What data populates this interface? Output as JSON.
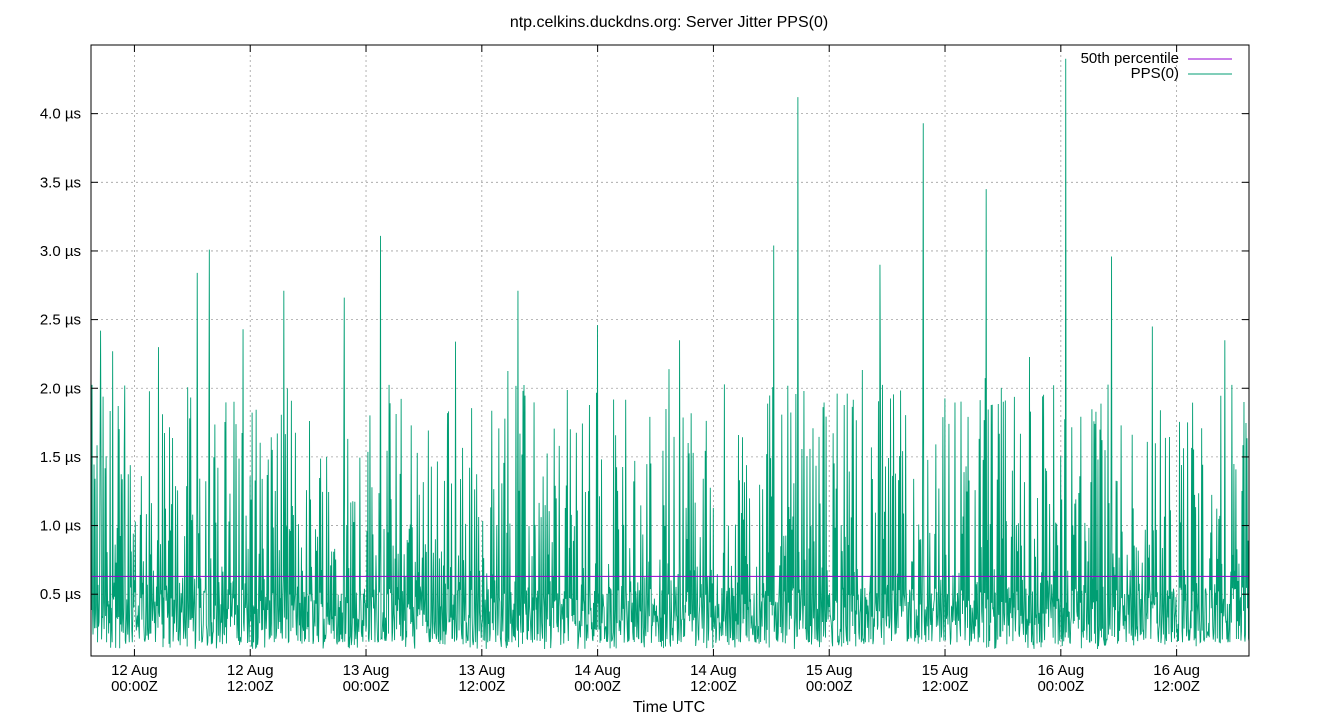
{
  "chart_data": {
    "type": "line",
    "title": "ntp.celkins.duckdns.org: Server Jitter PPS(0)",
    "xlabel": "Time UTC",
    "ylabel": "",
    "y_unit": "µs",
    "ylim": [
      0.05,
      4.5
    ],
    "xlim": [
      "2025-08-11T19:30Z",
      "2025-08-16T19:30Z"
    ],
    "grid": true,
    "legend_position": "top-right",
    "y_ticks": [
      {
        "value": 0.5,
        "label": "0.5 µs"
      },
      {
        "value": 1.0,
        "label": "1.0 µs"
      },
      {
        "value": 1.5,
        "label": "1.5 µs"
      },
      {
        "value": 2.0,
        "label": "2.0 µs"
      },
      {
        "value": 2.5,
        "label": "2.5 µs"
      },
      {
        "value": 3.0,
        "label": "3.0 µs"
      },
      {
        "value": 3.5,
        "label": "3.5 µs"
      },
      {
        "value": 4.0,
        "label": "4.0 µs"
      }
    ],
    "x_ticks": [
      {
        "value": "2025-08-12T00:00Z",
        "label": [
          "12 Aug",
          "00:00Z"
        ]
      },
      {
        "value": "2025-08-12T12:00Z",
        "label": [
          "12 Aug",
          "12:00Z"
        ]
      },
      {
        "value": "2025-08-13T00:00Z",
        "label": [
          "13 Aug",
          "00:00Z"
        ]
      },
      {
        "value": "2025-08-13T12:00Z",
        "label": [
          "13 Aug",
          "12:00Z"
        ]
      },
      {
        "value": "2025-08-14T00:00Z",
        "label": [
          "14 Aug",
          "00:00Z"
        ]
      },
      {
        "value": "2025-08-14T12:00Z",
        "label": [
          "14 Aug",
          "12:00Z"
        ]
      },
      {
        "value": "2025-08-15T00:00Z",
        "label": [
          "15 Aug",
          "00:00Z"
        ]
      },
      {
        "value": "2025-08-15T12:00Z",
        "label": [
          "15 Aug",
          "12:00Z"
        ]
      },
      {
        "value": "2025-08-16T00:00Z",
        "label": [
          "16 Aug",
          "00:00Z"
        ]
      },
      {
        "value": "2025-08-16T12:00Z",
        "label": [
          "16 Aug",
          "12:00Z"
        ]
      }
    ],
    "series": [
      {
        "name": "50th percentile",
        "color": "#9400d3",
        "constant_value": 0.63
      },
      {
        "name": "PPS(0)",
        "color": "#009e73",
        "peaks": [
          {
            "x": "2025-08-11T20:30Z",
            "y": 2.42
          },
          {
            "x": "2025-08-11T21:45Z",
            "y": 2.27
          },
          {
            "x": "2025-08-11T23:00Z",
            "y": 2.02
          },
          {
            "x": "2025-08-12T02:30Z",
            "y": 2.3
          },
          {
            "x": "2025-08-12T06:30Z",
            "y": 2.84
          },
          {
            "x": "2025-08-12T07:45Z",
            "y": 3.01
          },
          {
            "x": "2025-08-12T11:15Z",
            "y": 2.43
          },
          {
            "x": "2025-08-12T15:30Z",
            "y": 2.71
          },
          {
            "x": "2025-08-12T21:45Z",
            "y": 2.66
          },
          {
            "x": "2025-08-13T01:30Z",
            "y": 3.11
          },
          {
            "x": "2025-08-13T09:15Z",
            "y": 2.34
          },
          {
            "x": "2025-08-13T15:45Z",
            "y": 2.71
          },
          {
            "x": "2025-08-14T00:00Z",
            "y": 2.46
          },
          {
            "x": "2025-08-14T08:30Z",
            "y": 2.35
          },
          {
            "x": "2025-08-14T18:15Z",
            "y": 3.04
          },
          {
            "x": "2025-08-14T20:45Z",
            "y": 4.12
          },
          {
            "x": "2025-08-15T05:15Z",
            "y": 2.9
          },
          {
            "x": "2025-08-15T09:45Z",
            "y": 3.93
          },
          {
            "x": "2025-08-15T16:15Z",
            "y": 3.45
          },
          {
            "x": "2025-08-16T00:30Z",
            "y": 4.4
          },
          {
            "x": "2025-08-16T05:15Z",
            "y": 2.96
          },
          {
            "x": "2025-08-16T09:30Z",
            "y": 2.45
          },
          {
            "x": "2025-08-16T17:00Z",
            "y": 2.35
          },
          {
            "x": "2025-08-16T19:00Z",
            "y": 1.9
          }
        ],
        "typical_range": [
          0.1,
          1.5
        ]
      }
    ]
  }
}
